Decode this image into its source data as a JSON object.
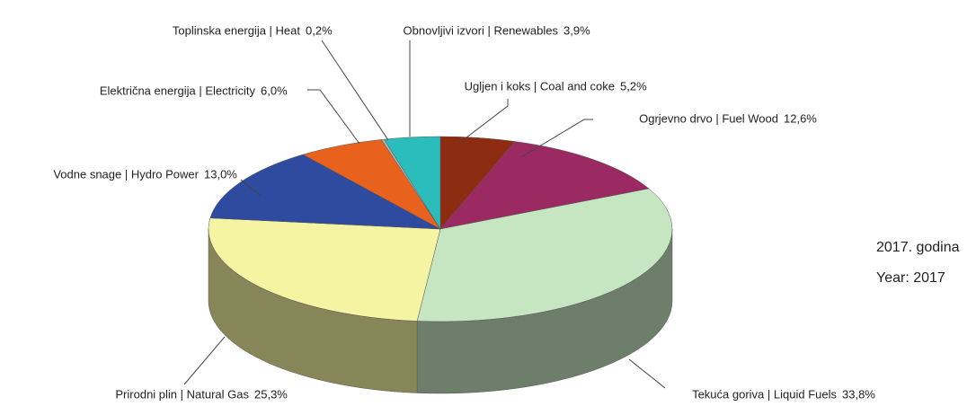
{
  "chart_data": {
    "type": "pie3d",
    "categories": [
      "Ugljen i koks | Coal and coke",
      "Ogrjevno drvo | Fuel Wood",
      "Tekuća goriva | Liquid Fuels",
      "Prirodni plin | Natural Gas",
      "Vodne snage | Hydro Power",
      "Električna energija | Electricity",
      "Toplinska energija | Heat",
      "Obnovljivi izvori | Renewables"
    ],
    "values": [
      5.2,
      12.6,
      33.8,
      25.3,
      13.0,
      6.0,
      0.2,
      3.9
    ],
    "value_labels": [
      "5,2%",
      "12,6%",
      "33,8%",
      "25,3%",
      "13,0%",
      "6,0%",
      "0,2%",
      "3,9%"
    ],
    "colors": [
      "#8e2c12",
      "#9c2a62",
      "#c6e6c2",
      "#f4f4a2",
      "#2f4b9f",
      "#e8621e",
      "#b0b0b0",
      "#2bbcbc"
    ],
    "annotations": [
      "2017. godina",
      "Year: 2017"
    ]
  }
}
